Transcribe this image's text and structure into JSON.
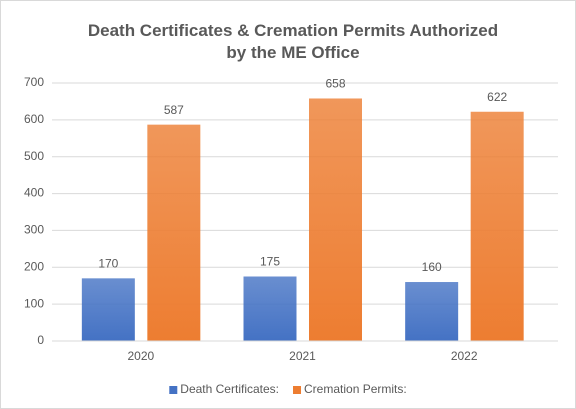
{
  "chart_data": {
    "type": "bar",
    "title": "Death Certificates & Cremation Permits Authorized by the ME Office",
    "categories": [
      "2020",
      "2021",
      "2022"
    ],
    "series": [
      {
        "name": "Death Certificates:",
        "color": "#4472c4",
        "values": [
          170,
          175,
          160
        ]
      },
      {
        "name": "Cremation Permits:",
        "color": "#ed7d31",
        "values": [
          587,
          658,
          622
        ]
      }
    ],
    "ylim": [
      0,
      700
    ],
    "yticks": [
      0,
      100,
      200,
      300,
      400,
      500,
      600,
      700
    ],
    "grid": true,
    "legend": "bottom"
  }
}
